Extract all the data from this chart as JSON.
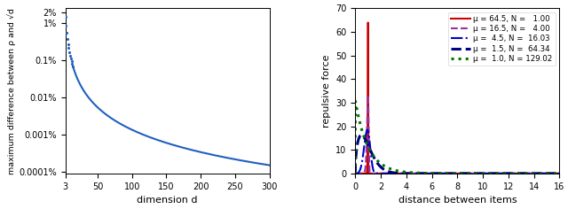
{
  "left_plot": {
    "xlabel": "dimension d",
    "ylabel": "maximum difference between ρ and √d",
    "ytick_vals": [
      0.02,
      0.01,
      0.001,
      0.0001,
      1e-05,
      1e-06
    ],
    "ytick_labels": [
      "2%",
      "1%",
      "0.1%",
      "0.01%",
      "0.001%",
      "0.0001%"
    ],
    "xlim": [
      3,
      300
    ],
    "xticks": [
      3,
      50,
      100,
      150,
      200,
      250,
      300
    ],
    "color": "#2060c0",
    "linewidth": 1.5,
    "C": 0.135,
    "k": 2.0
  },
  "right_plot": {
    "xlabel": "distance between items",
    "ylabel": "repulsive force",
    "xlim": [
      0,
      16
    ],
    "ylim": [
      0,
      70
    ],
    "xticks": [
      0,
      2,
      4,
      6,
      8,
      10,
      12,
      14,
      16
    ],
    "yticks": [
      0,
      10,
      20,
      30,
      40,
      50,
      60,
      70
    ],
    "series": [
      {
        "mu": 64.5,
        "N": 1.0,
        "color": "#cc0000",
        "linestyle": "-",
        "linewidth": 1.5,
        "label": "μ = 64.5, N =   1.00"
      },
      {
        "mu": 16.5,
        "N": 4.0,
        "color": "#993399",
        "linestyle": "--",
        "linewidth": 1.5,
        "label": "μ = 16.5, N =   4.00"
      },
      {
        "mu": 4.5,
        "N": 16.03,
        "color": "#0000cc",
        "linestyle": "-.",
        "linewidth": 1.5,
        "label": "μ =  4.5, N =  16.03"
      },
      {
        "mu": 1.5,
        "N": 64.34,
        "color": "#000080",
        "linestyle": "--",
        "linewidth": 2.2,
        "label": "μ =  1.5, N =  64.34"
      },
      {
        "mu": 1.0,
        "N": 129.02,
        "color": "#007700",
        "linestyle": ":",
        "linewidth": 2.2,
        "label": "μ =  1.0, N = 129.02"
      }
    ]
  }
}
